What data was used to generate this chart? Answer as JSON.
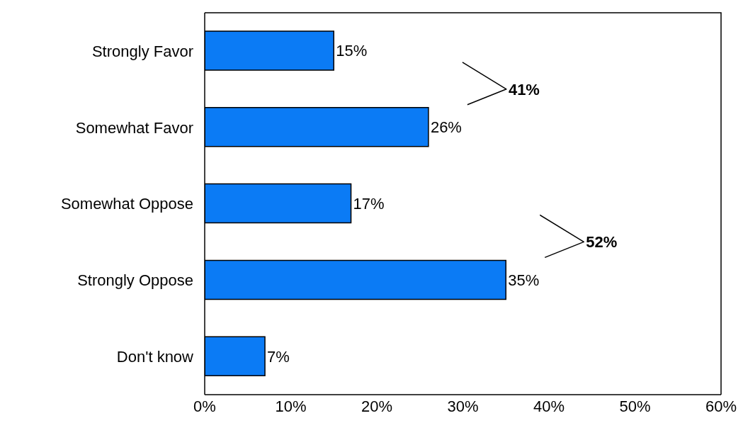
{
  "chart_data": {
    "type": "bar",
    "orientation": "horizontal",
    "categories": [
      "Strongly Favor",
      "Somewhat Favor",
      "Somewhat Oppose",
      "Strongly Oppose",
      "Don't know"
    ],
    "values": [
      15,
      26,
      17,
      35,
      7
    ],
    "value_labels": [
      "15%",
      "26%",
      "17%",
      "35%",
      "7%"
    ],
    "color": "#0b7bf5",
    "xlim": [
      0,
      60
    ],
    "xticks": [
      {
        "value": 0,
        "label": "0%"
      },
      {
        "value": 10,
        "label": "10%"
      },
      {
        "value": 20,
        "label": "20%"
      },
      {
        "value": 30,
        "label": "30%"
      },
      {
        "value": 40,
        "label": "40%"
      },
      {
        "value": 50,
        "label": "50%"
      },
      {
        "value": 60,
        "label": "60%"
      }
    ],
    "annotations": [
      "41%",
      "52%"
    ],
    "grid": false,
    "legend": false
  }
}
